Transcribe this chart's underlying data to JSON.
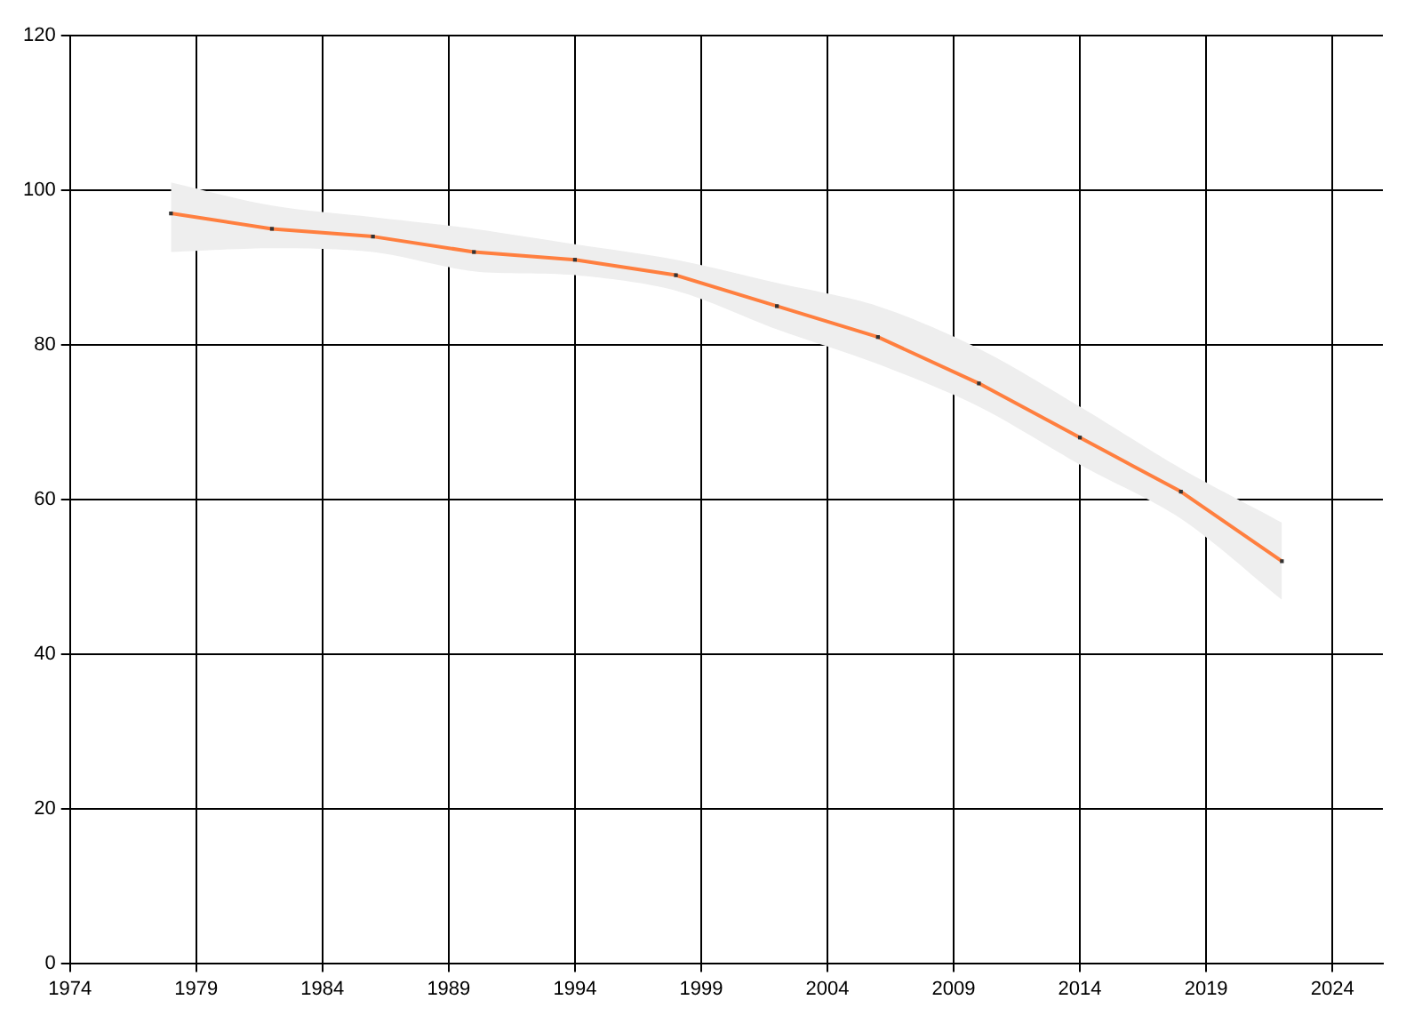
{
  "chart_data": {
    "type": "line",
    "x": [
      1978,
      1982,
      1986,
      1990,
      1994,
      1998,
      2002,
      2006,
      2010,
      2014,
      2018,
      2022
    ],
    "series": [
      {
        "color": "#ff7f3f",
        "values": [
          97,
          95,
          94,
          92,
          91,
          89,
          85,
          81,
          75,
          68,
          61,
          52
        ],
        "lower": [
          92,
          92.5,
          92,
          89.5,
          89,
          87,
          82,
          77.5,
          72,
          64.5,
          57.5,
          47
        ],
        "upper": [
          101,
          98,
          96.5,
          95,
          93,
          91,
          88,
          85,
          79.5,
          72,
          64,
          57
        ]
      }
    ],
    "xlim": [
      1974,
      2026
    ],
    "xticks": [
      1974,
      1979,
      1984,
      1989,
      1994,
      1999,
      2004,
      2009,
      2014,
      2019,
      2024
    ],
    "ylim": [
      0,
      120
    ],
    "yticks": [
      0,
      20,
      40,
      60,
      80,
      100,
      120
    ],
    "grid": true,
    "legend": false,
    "marker": "square",
    "line_style": "solid"
  }
}
